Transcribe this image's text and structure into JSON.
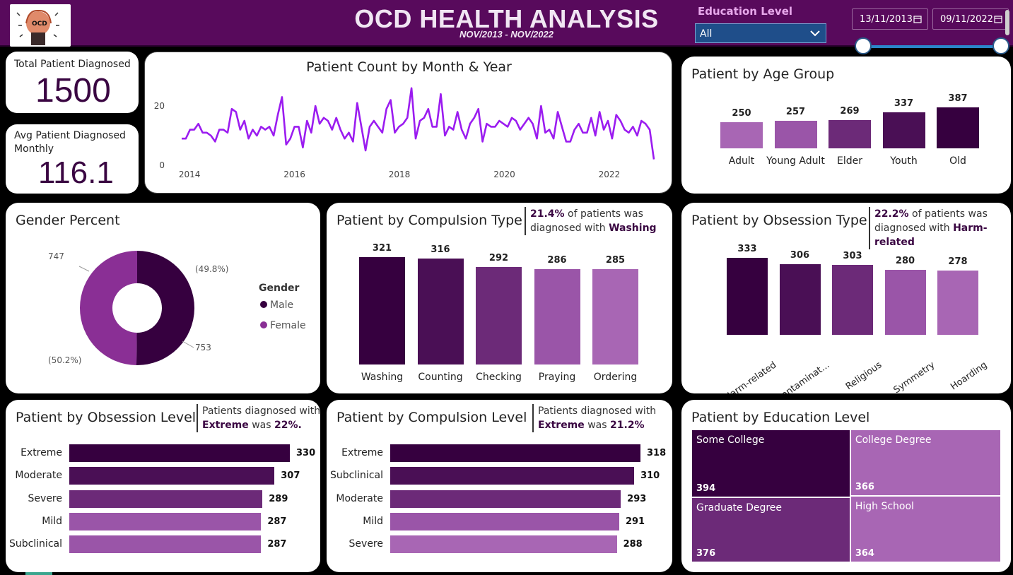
{
  "header": {
    "title": "OCD HEALTH ANALYSIS",
    "subtitle": "NOV/2013 - NOV/2022",
    "logo_text": "OCD",
    "education_filter_label": "Education Level",
    "education_filter_value": "All",
    "date_start": "13/11/2013",
    "date_end": "09/11/2022"
  },
  "kpis": {
    "total_label": "Total Patient Diagnosed",
    "total_value": "1500",
    "avg_label_1": "Avg Patient Diagnosed",
    "avg_label_2": "Monthly",
    "avg_value": "116.1"
  },
  "cards": {
    "monthly_title": "Patient Count by Month & Year",
    "age_title": "Patient by Age Group",
    "gender_title": "Gender Percent",
    "compulsion_type_title": "Patient by Compulsion Type",
    "obsession_type_title": "Patient by Obsession Type",
    "obsession_level_title": "Patient by Obsession Level",
    "compulsion_level_title": "Patient by Compulsion Level",
    "education_title": "Patient by Education Level"
  },
  "notes": {
    "compulsion_type": {
      "pct": "21.4%",
      "pre": " of patients was diagnosed with ",
      "bold": "Washing"
    },
    "obsession_type": {
      "pct": "22.2%",
      "pre": " of patients was diagnosed with ",
      "bold": "Harm-related"
    },
    "obsession_level": {
      "pre": "Patients diagnosed with ",
      "bold": "Extreme",
      "mid": " was ",
      "pct": "22%."
    },
    "compulsion_level": {
      "pre": "Patients diagnosed with ",
      "bold": "Extreme",
      "mid": " was ",
      "pct": "21.2%"
    }
  },
  "colors": {
    "darkest": "#36003f",
    "dark": "#4a0f55",
    "mid": "#6c2a78",
    "light": "#9a55a8",
    "lighter": "#a866b4",
    "line": "#9b1cf0"
  },
  "chart_data": [
    {
      "id": "monthly",
      "type": "line",
      "x_ticks": [
        "2014",
        "2016",
        "2018",
        "2020",
        "2022"
      ],
      "y_ticks": [
        "0",
        "20"
      ],
      "ylim": [
        0,
        25
      ],
      "x_range": [
        2013.85,
        2022.85
      ],
      "values": [
        9,
        9,
        12,
        12,
        14,
        11,
        11,
        10,
        8,
        12,
        12,
        11,
        19,
        18,
        12,
        15,
        9,
        12,
        10,
        13,
        12,
        13,
        10,
        17,
        23,
        7,
        9,
        13,
        13,
        6,
        15,
        11,
        20,
        14,
        16,
        15,
        12,
        16,
        12,
        9,
        11,
        8,
        21,
        13,
        5,
        13,
        15,
        13,
        11,
        19,
        22,
        11,
        13,
        14,
        16,
        26,
        9,
        15,
        16,
        19,
        13,
        13,
        24,
        10,
        13,
        12,
        18,
        12,
        9,
        14,
        16,
        19,
        8,
        14,
        13,
        13,
        15,
        14,
        13,
        16,
        15,
        12,
        14,
        16,
        14,
        9,
        20,
        11,
        12,
        9,
        18,
        13,
        8,
        8,
        12,
        14,
        11,
        11,
        16,
        10,
        18,
        12,
        15,
        9,
        17,
        15,
        12,
        11,
        13,
        10,
        15,
        14,
        12,
        2
      ],
      "grid": false
    },
    {
      "id": "age",
      "type": "bar",
      "categories": [
        "Adult",
        "Young Adult",
        "Elder",
        "Youth",
        "Old"
      ],
      "values": [
        250,
        257,
        269,
        337,
        387
      ]
    },
    {
      "id": "gender",
      "type": "pie",
      "legend_title": "Gender",
      "slices": [
        {
          "name": "Male",
          "value": 753,
          "label": "753",
          "pct": "(50.2%)"
        },
        {
          "name": "Female",
          "value": 747,
          "label": "747",
          "pct": "(49.8%)"
        }
      ],
      "legend": "right"
    },
    {
      "id": "compulsion_type",
      "type": "bar",
      "categories": [
        "Washing",
        "Counting",
        "Checking",
        "Praying",
        "Ordering"
      ],
      "values": [
        321,
        316,
        292,
        286,
        285
      ]
    },
    {
      "id": "obsession_type",
      "type": "bar",
      "categories": [
        "Harm-related",
        "Contaminat...",
        "Religious",
        "Symmetry",
        "Hoarding"
      ],
      "values": [
        333,
        306,
        303,
        280,
        278
      ]
    },
    {
      "id": "obsession_level",
      "type": "bar",
      "orientation": "horizontal",
      "categories": [
        "Extreme",
        "Moderate",
        "Severe",
        "Mild",
        "Subclinical"
      ],
      "values": [
        330,
        307,
        289,
        287,
        287
      ]
    },
    {
      "id": "compulsion_level",
      "type": "bar",
      "orientation": "horizontal",
      "categories": [
        "Extreme",
        "Subclinical",
        "Moderate",
        "Mild",
        "Severe"
      ],
      "values": [
        318,
        310,
        293,
        291,
        288
      ]
    },
    {
      "id": "education",
      "type": "treemap",
      "categories": [
        "Some College",
        "College Degree",
        "Graduate Degree",
        "High School"
      ],
      "values": [
        394,
        366,
        376,
        364
      ]
    }
  ]
}
